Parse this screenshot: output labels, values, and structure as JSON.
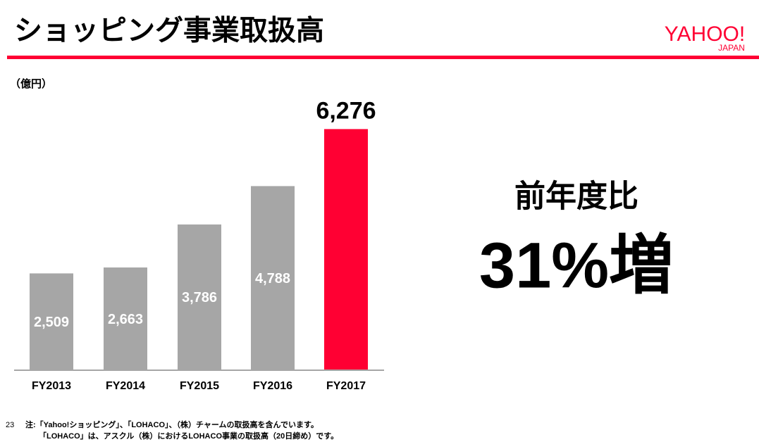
{
  "chart_data": {
    "type": "bar",
    "title": "ショッピング事業取扱高",
    "y_label": "（億円）",
    "categories": [
      "FY2013",
      "FY2014",
      "FY2015",
      "FY2016",
      "FY2017"
    ],
    "values": [
      2509,
      2663,
      3786,
      4788,
      6276
    ],
    "value_labels": [
      "2,509",
      "2,663",
      "3,786",
      "4,788",
      "6,276"
    ],
    "colors": [
      "#a6a6a6",
      "#a6a6a6",
      "#a6a6a6",
      "#a6a6a6",
      "#ff0033"
    ],
    "ylim": [
      0,
      7000
    ]
  },
  "logo": {
    "main": "YAHOO!",
    "sub": "JAPAN"
  },
  "callout": {
    "label": "前年度比",
    "text": "31%増"
  },
  "page_number": "23",
  "notes": [
    "注:「Yahoo!ショッピング」、「LOHACO」、（株）チャームの取扱高を含んでいます。",
    "「LOHACO」は、アスクル（株）におけるLOHACO事業の取扱高（20日締め）です。"
  ]
}
